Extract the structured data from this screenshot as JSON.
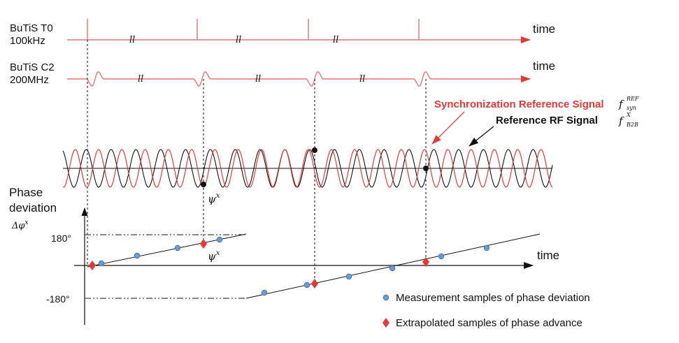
{
  "signals": {
    "t0_name": "BuTiS T0",
    "t0_freq": "100kHz",
    "c2_name": "BuTiS C2",
    "c2_freq": "200MHz",
    "time_label": "time",
    "break_mark": "ll"
  },
  "rf": {
    "sync_label": "Synchronization Reference Signal",
    "sync_symbol": "f",
    "sync_sup": "REF",
    "sync_sub": "syn",
    "ref_label": "Reference RF Signal",
    "ref_symbol": "f",
    "ref_sup": "X",
    "ref_sub": "B2B",
    "psi_label": "ψ",
    "psi_sup": "x"
  },
  "phase_axis": {
    "title_line1": "Phase",
    "title_line2": "deviation",
    "symbol": "Δφ",
    "symbol_sup": "x",
    "tick_180": "180°",
    "tick_m180": "-180°",
    "time_label": "time"
  },
  "legend": {
    "measurement": "Measurement samples of phase deviation",
    "extrapolated": "Extrapolated samples of phase advance"
  },
  "colors": {
    "red": "#e53935",
    "pink_line": "#e57373",
    "blue_dot": "#6b9bd2",
    "black": "#111111"
  }
}
